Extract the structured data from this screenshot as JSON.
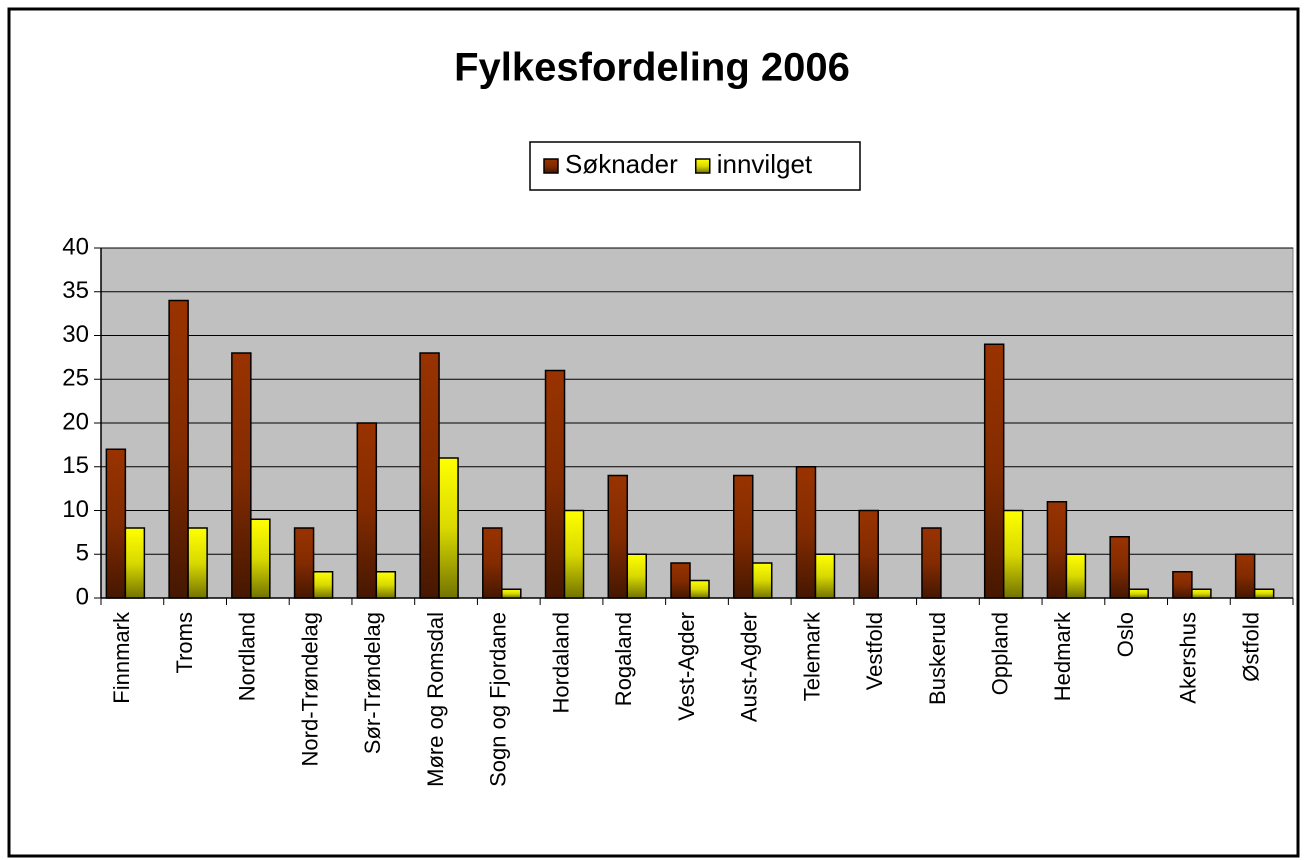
{
  "chart_data": {
    "type": "bar",
    "title": "Fylkesfordeling 2006",
    "categories": [
      "Finnmark",
      "Troms",
      "Nordland",
      "Nord-Trøndelag",
      "Sør-Trøndelag",
      "Møre og Romsdal",
      "Sogn og Fjordane",
      "Hordaland",
      "Rogaland",
      "Vest-Agder",
      "Aust-Agder",
      "Telemark",
      "Vestfold",
      "Buskerud",
      "Oppland",
      "Hedmark",
      "Oslo",
      "Akershus",
      "Østfold"
    ],
    "series": [
      {
        "name": "Søknader",
        "color": "#993300",
        "values": [
          17,
          34,
          28,
          8,
          20,
          28,
          8,
          26,
          14,
          4,
          14,
          15,
          10,
          8,
          29,
          11,
          7,
          3,
          5
        ]
      },
      {
        "name": "innvilget",
        "color": "#ffff00",
        "values": [
          8,
          8,
          9,
          3,
          3,
          16,
          1,
          10,
          5,
          2,
          4,
          5,
          0,
          0,
          10,
          5,
          1,
          1,
          1
        ]
      }
    ],
    "ylim": [
      0,
      40
    ],
    "yticks": [
      0,
      5,
      10,
      15,
      20,
      25,
      30,
      35,
      40
    ],
    "grid": true,
    "legend": "top"
  }
}
